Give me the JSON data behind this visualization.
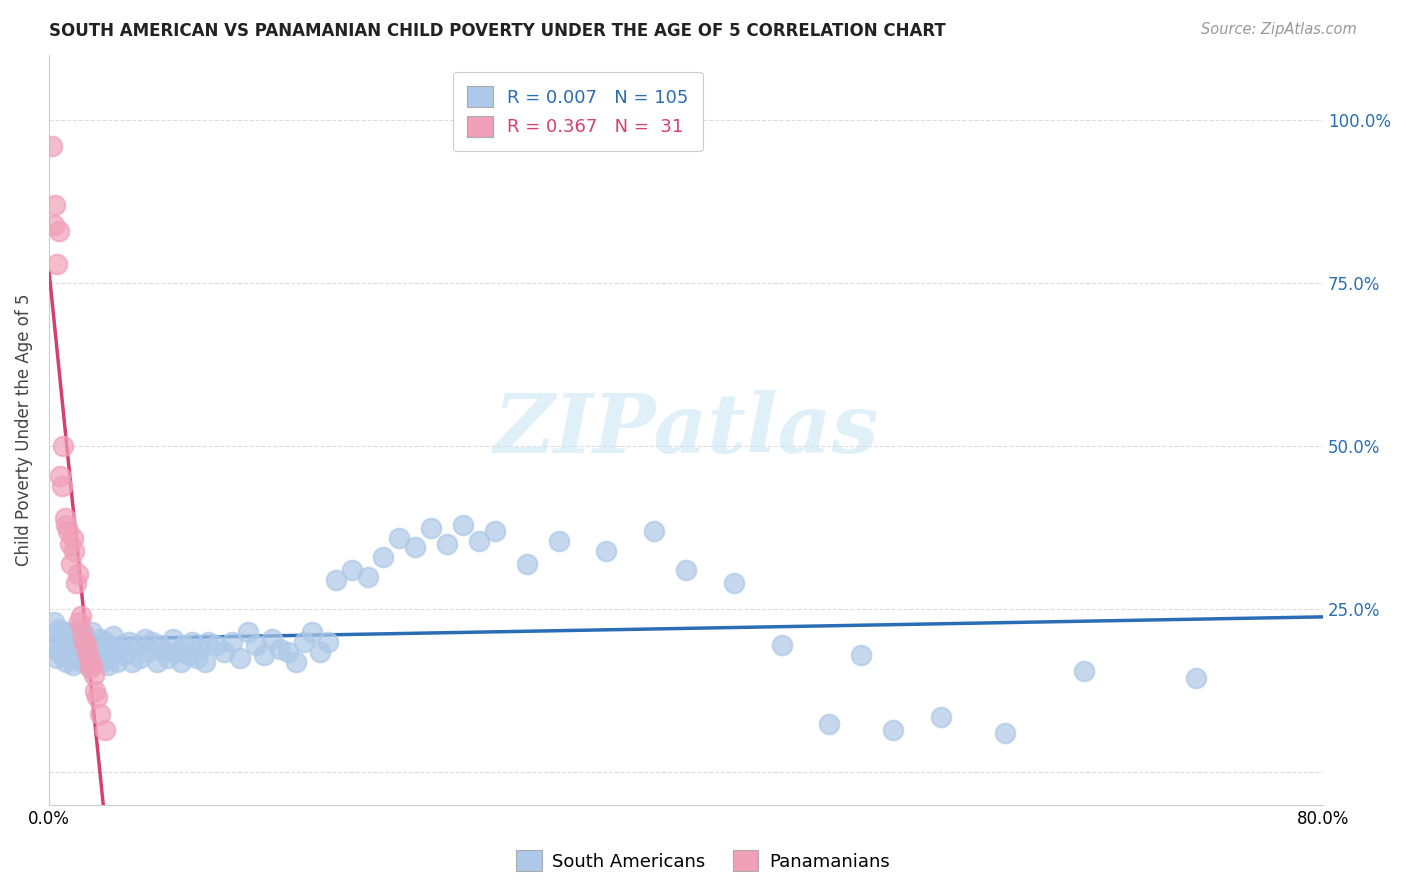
{
  "title": "SOUTH AMERICAN VS PANAMANIAN CHILD POVERTY UNDER THE AGE OF 5 CORRELATION CHART",
  "source": "Source: ZipAtlas.com",
  "ylabel": "Child Poverty Under the Age of 5",
  "xlim": [
    0.0,
    0.8
  ],
  "ylim": [
    -0.05,
    1.1
  ],
  "xticks": [
    0.0,
    0.1,
    0.2,
    0.3,
    0.4,
    0.5,
    0.6,
    0.7,
    0.8
  ],
  "xticklabels": [
    "0.0%",
    "",
    "",
    "",
    "",
    "",
    "",
    "",
    "80.0%"
  ],
  "ytick_positions": [
    0.0,
    0.25,
    0.5,
    0.75,
    1.0
  ],
  "yticklabels_right": [
    "",
    "25.0%",
    "50.0%",
    "75.0%",
    "100.0%"
  ],
  "sa_R": "0.007",
  "sa_N": "105",
  "pan_R": "0.367",
  "pan_N": "31",
  "sa_color": "#adc8e8",
  "pan_color": "#f0a0b8",
  "sa_line_color": "#2a6db5",
  "pan_line_color": "#d44070",
  "pan_dashed_color": "#c8c8c8",
  "legend_text_blue": "#2a6db5",
  "legend_text_pink": "#d44070",
  "south_americans_x": [
    0.003,
    0.004,
    0.005,
    0.005,
    0.006,
    0.006,
    0.007,
    0.008,
    0.008,
    0.009,
    0.01,
    0.011,
    0.012,
    0.013,
    0.014,
    0.015,
    0.015,
    0.016,
    0.017,
    0.018,
    0.019,
    0.02,
    0.021,
    0.022,
    0.023,
    0.024,
    0.025,
    0.026,
    0.027,
    0.028,
    0.03,
    0.031,
    0.032,
    0.033,
    0.034,
    0.035,
    0.036,
    0.037,
    0.038,
    0.04,
    0.042,
    0.043,
    0.045,
    0.047,
    0.05,
    0.052,
    0.055,
    0.057,
    0.06,
    0.062,
    0.065,
    0.068,
    0.07,
    0.073,
    0.075,
    0.078,
    0.08,
    0.083,
    0.085,
    0.088,
    0.09,
    0.093,
    0.095,
    0.098,
    0.1,
    0.105,
    0.11,
    0.115,
    0.12,
    0.125,
    0.13,
    0.135,
    0.14,
    0.145,
    0.15,
    0.155,
    0.16,
    0.165,
    0.17,
    0.175,
    0.18,
    0.19,
    0.2,
    0.21,
    0.22,
    0.23,
    0.24,
    0.25,
    0.26,
    0.27,
    0.28,
    0.3,
    0.32,
    0.35,
    0.38,
    0.4,
    0.43,
    0.46,
    0.49,
    0.51,
    0.53,
    0.56,
    0.6,
    0.65,
    0.72
  ],
  "south_americans_y": [
    0.23,
    0.195,
    0.21,
    0.175,
    0.22,
    0.185,
    0.2,
    0.215,
    0.18,
    0.195,
    0.205,
    0.17,
    0.215,
    0.18,
    0.195,
    0.21,
    0.165,
    0.2,
    0.175,
    0.215,
    0.185,
    0.2,
    0.17,
    0.21,
    0.185,
    0.175,
    0.2,
    0.165,
    0.215,
    0.18,
    0.19,
    0.175,
    0.205,
    0.17,
    0.19,
    0.2,
    0.175,
    0.165,
    0.195,
    0.21,
    0.185,
    0.17,
    0.195,
    0.18,
    0.2,
    0.17,
    0.195,
    0.175,
    0.205,
    0.185,
    0.2,
    0.17,
    0.195,
    0.185,
    0.175,
    0.205,
    0.185,
    0.17,
    0.195,
    0.18,
    0.2,
    0.175,
    0.19,
    0.17,
    0.2,
    0.195,
    0.185,
    0.2,
    0.175,
    0.215,
    0.195,
    0.18,
    0.205,
    0.19,
    0.185,
    0.17,
    0.2,
    0.215,
    0.185,
    0.2,
    0.295,
    0.31,
    0.3,
    0.33,
    0.36,
    0.345,
    0.375,
    0.35,
    0.38,
    0.355,
    0.37,
    0.32,
    0.355,
    0.34,
    0.37,
    0.31,
    0.29,
    0.195,
    0.075,
    0.18,
    0.065,
    0.085,
    0.06,
    0.155,
    0.145
  ],
  "panamanians_x": [
    0.002,
    0.003,
    0.004,
    0.005,
    0.006,
    0.007,
    0.008,
    0.009,
    0.01,
    0.011,
    0.012,
    0.013,
    0.014,
    0.015,
    0.016,
    0.017,
    0.018,
    0.019,
    0.02,
    0.021,
    0.022,
    0.023,
    0.024,
    0.025,
    0.026,
    0.027,
    0.028,
    0.029,
    0.03,
    0.032,
    0.035
  ],
  "panamanians_y": [
    0.96,
    0.84,
    0.87,
    0.78,
    0.83,
    0.455,
    0.44,
    0.5,
    0.39,
    0.38,
    0.37,
    0.35,
    0.32,
    0.36,
    0.34,
    0.29,
    0.305,
    0.23,
    0.24,
    0.215,
    0.2,
    0.195,
    0.185,
    0.175,
    0.16,
    0.165,
    0.15,
    0.125,
    0.115,
    0.09,
    0.065
  ]
}
